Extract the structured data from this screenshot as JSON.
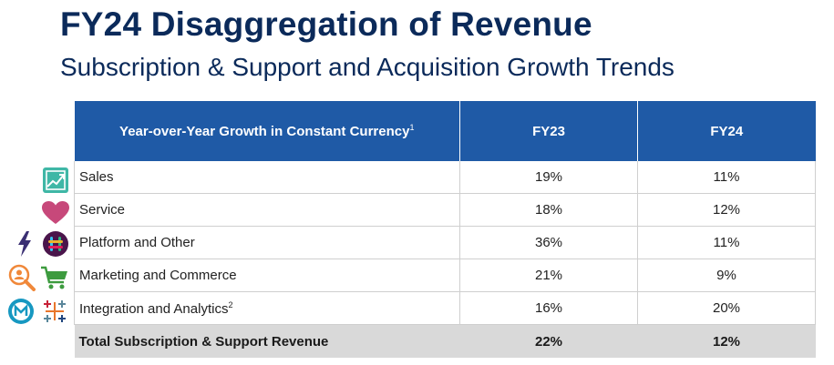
{
  "title": "FY24 Disaggregation of Revenue",
  "subtitle": "Subscription & Support and Acquisition Growth Trends",
  "table": {
    "header": {
      "metric_label": "Year-over-Year Growth in Constant Currency",
      "metric_footnote": "1",
      "col_fy23": "FY23",
      "col_fy24": "FY24"
    },
    "rows": [
      {
        "label": "Sales",
        "footnote": "",
        "fy23": "19%",
        "fy24": "11%"
      },
      {
        "label": "Service",
        "footnote": "",
        "fy23": "18%",
        "fy24": "12%"
      },
      {
        "label": "Platform and Other",
        "footnote": "",
        "fy23": "36%",
        "fy24": "11%"
      },
      {
        "label": "Marketing and Commerce",
        "footnote": "",
        "fy23": "21%",
        "fy24": "9%"
      },
      {
        "label": "Integration and Analytics",
        "footnote": "2",
        "fy23": "16%",
        "fy24": "20%"
      }
    ],
    "total": {
      "label": "Total Subscription & Support Revenue",
      "fy23": "22%",
      "fy24": "12%"
    }
  },
  "icons": [
    "sales-chart-icon",
    "service-heart-icon",
    "lightning-icon",
    "slack-icon",
    "search-person-icon",
    "shopping-cart-icon",
    "mulesoft-icon",
    "tableau-icon"
  ],
  "colors": {
    "title": "#0b2a5a",
    "header_bg": "#1f5aa6",
    "total_bg": "#d9d9d9"
  }
}
